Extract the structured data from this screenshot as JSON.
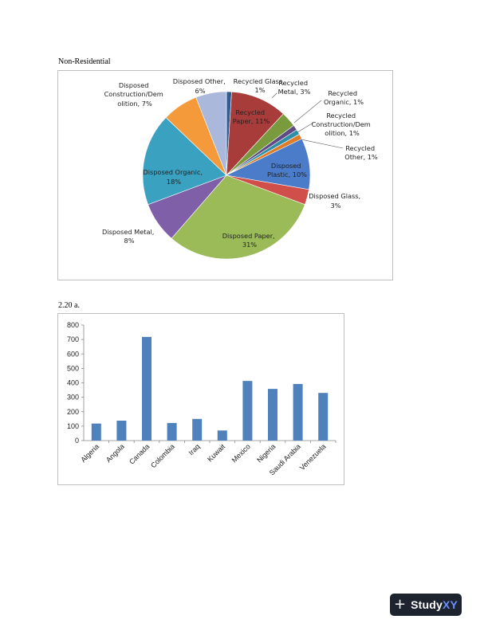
{
  "page": {
    "caption_pie": "Non-Residential",
    "caption_bar": "2.20 a."
  },
  "brand": {
    "plus_glyph": "+",
    "name_part1": "Study",
    "name_part2": "XY",
    "bg_color": "#1d2430",
    "accent_color": "#6c8ef5"
  },
  "chart_data": [
    {
      "type": "pie",
      "slices": [
        {
          "label": "Recycled Glass, 1%",
          "value": 1,
          "color": "#2e5c94"
        },
        {
          "label": "Recycled Paper, 11%",
          "value": 11,
          "color": "#a83c3a"
        },
        {
          "label": "Recycled Metal, 3%",
          "value": 3,
          "color": "#7a9a3e"
        },
        {
          "label": "Recycled Organic, 1%",
          "value": 1,
          "color": "#5f4a86"
        },
        {
          "label": "Recycled Construction/Demolition, 1%",
          "value": 1,
          "color": "#2f8fa6"
        },
        {
          "label": "Recycled Other, 1%",
          "value": 1,
          "color": "#e07b27"
        },
        {
          "label": "Disposed Plastic, 10%",
          "value": 10,
          "color": "#4a7cc9"
        },
        {
          "label": "Disposed Glass, 3%",
          "value": 3,
          "color": "#d04f4a"
        },
        {
          "label": "Disposed Paper, 31%",
          "value": 31,
          "color": "#9bbb59"
        },
        {
          "label": "Disposed Metal, 8%",
          "value": 8,
          "color": "#7f60a8"
        },
        {
          "label": "Disposed Organic, 18%",
          "value": 18,
          "color": "#3aa1c0"
        },
        {
          "label": "Disposed Construction/Demolition, 7%",
          "value": 7,
          "color": "#f59a3a"
        },
        {
          "label": "Disposed Other, 6%",
          "value": 6,
          "color": "#aab8dc"
        }
      ],
      "labels": {
        "recycled_glass": [
          "Recycled Glass,",
          "1%"
        ],
        "recycled_metal": [
          "Recycled",
          "Metal, 3%"
        ],
        "recycled_organic": [
          "Recycled",
          "Organic, 1%"
        ],
        "recycled_construction": [
          "Recycled",
          "Construction/Dem",
          "olition, 1%"
        ],
        "recycled_other": [
          "Recycled",
          "Other, 1%"
        ],
        "recycled_paper": [
          "Recycled",
          "Paper, 11%"
        ],
        "disposed_plastic": [
          "Disposed",
          "Plastic, 10%"
        ],
        "disposed_glass": [
          "Disposed Glass,",
          "3%"
        ],
        "disposed_paper": [
          "Disposed Paper,",
          "31%"
        ],
        "disposed_metal": [
          "Disposed Metal,",
          "8%"
        ],
        "disposed_organic": [
          "Disposed Organic,",
          "18%"
        ],
        "disposed_construction": [
          "Disposed",
          "Construction/Dem",
          "olition, 7%"
        ],
        "disposed_other": [
          "Disposed Other,",
          "6%"
        ]
      }
    },
    {
      "type": "bar",
      "categories": [
        "Algeria",
        "Angola",
        "Canada",
        "Colombia",
        "Iraq",
        "Kuwait",
        "Mexico",
        "Nigeria",
        "Saudi Arabia",
        "Venezuela"
      ],
      "values": [
        118,
        138,
        718,
        122,
        150,
        70,
        413,
        358,
        392,
        330
      ],
      "ylim": [
        0,
        800
      ],
      "yticks": [
        "0",
        "100",
        "200",
        "300",
        "400",
        "500",
        "600",
        "700",
        "800"
      ],
      "bar_color": "#4f81bd",
      "grid": false
    }
  ]
}
